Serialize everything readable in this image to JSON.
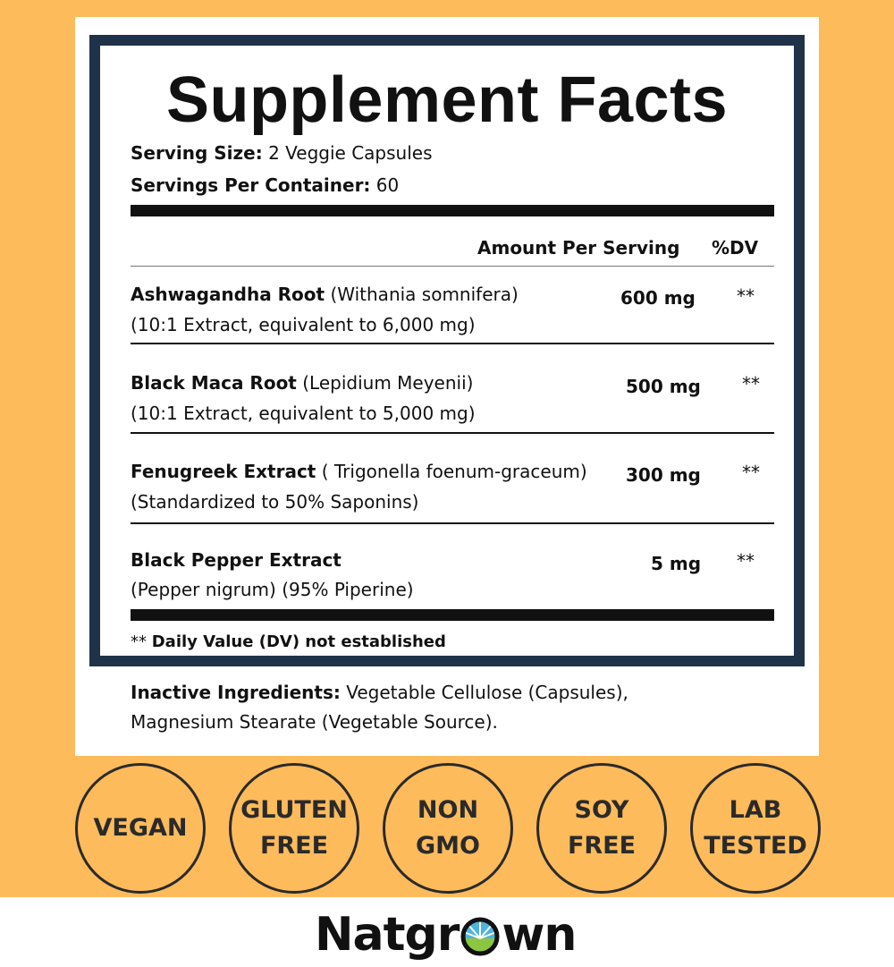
{
  "title": "Supplement Facts",
  "serving_size": {
    "label": "Serving Size:",
    "value": "2 Veggie Capsules"
  },
  "servings_per_container": {
    "label": "Servings Per Container:",
    "value": "60"
  },
  "header": {
    "amount": "Amount Per Serving",
    "dv": "%DV"
  },
  "ingredients": [
    {
      "name": "Ashwagandha Root",
      "latin": "(Withania somnifera)",
      "detail": "(10:1 Extract, equivalent to 6,000 mg)",
      "amount": "600 mg",
      "dv": "**"
    },
    {
      "name": "Black Maca Root",
      "latin": "(Lepidium Meyenii)",
      "detail": "(10:1 Extract, equivalent to 5,000 mg)",
      "amount": "500 mg",
      "dv": "**"
    },
    {
      "name": "Fenugreek Extract",
      "latin": "( Trigonella foenum-graceum)",
      "detail": "(Standardized to 50% Saponins)",
      "amount": "300 mg",
      "dv": "**"
    },
    {
      "name": "Black Pepper Extract",
      "latin": "",
      "detail": "(Pepper nigrum) (95% Piperine)",
      "amount": "5 mg",
      "dv": "**"
    }
  ],
  "footnote": {
    "stars": "**",
    "text": "Daily Value (DV) not established"
  },
  "inactive": {
    "label": "Inactive Ingredients:",
    "line1": "Vegetable Cellulose (Capsules),",
    "line2": "Magnesium Stearate (Vegetable Source)."
  },
  "badges": [
    [
      "VEGAN"
    ],
    [
      "GLUTEN",
      "FREE"
    ],
    [
      "NON",
      "GMO"
    ],
    [
      "SOY",
      "FREE"
    ],
    [
      "LAB",
      "TESTED"
    ]
  ],
  "brand": {
    "before": "Natgr",
    "after": "wn"
  },
  "colors": {
    "background": "#fdbb5c",
    "frame": "#1f3249",
    "badge": "#2a2a2a"
  }
}
